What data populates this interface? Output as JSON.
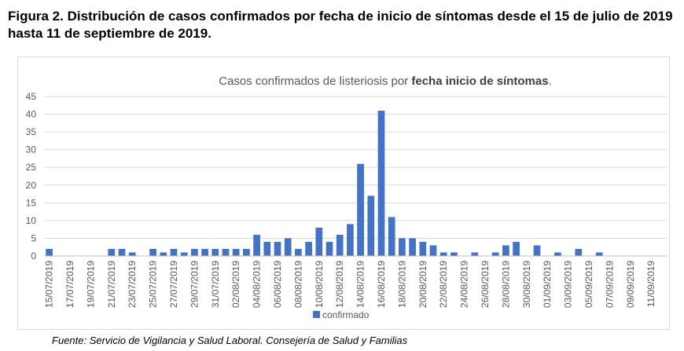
{
  "figure": {
    "title": "Figura 2. Distribución de casos confirmados por fecha de inicio de síntomas desde el 15 de julio de 2019 hasta 11 de septiembre de 2019.",
    "source": "Fuente: Servicio de Vigilancia y Salud Laboral. Consejería de Salud y Familias"
  },
  "chart_data": {
    "type": "bar",
    "title_prefix": "Casos confirmados de listeriosis por ",
    "title_bold": "fecha inicio de síntomas",
    "title_suffix": ".",
    "xlabel": "",
    "ylabel": "",
    "ylim": [
      0,
      45
    ],
    "yticks": [
      0,
      5,
      10,
      15,
      20,
      25,
      30,
      35,
      40,
      45
    ],
    "grid": true,
    "legend": "bottom-center",
    "bar_color": "#4472c4",
    "series": [
      {
        "name": "confirmado",
        "values": [
          2,
          0,
          0,
          0,
          0,
          0,
          2,
          2,
          1,
          0,
          2,
          1,
          2,
          1,
          2,
          2,
          2,
          2,
          2,
          2,
          6,
          4,
          4,
          5,
          2,
          4,
          8,
          4,
          6,
          9,
          26,
          17,
          41,
          11,
          5,
          5,
          4,
          3,
          1,
          1,
          0,
          1,
          0,
          1,
          3,
          4,
          0,
          3,
          0,
          1,
          0,
          2,
          0,
          1,
          0,
          0,
          0,
          0,
          0,
          0
        ]
      }
    ],
    "categories": [
      "15/07/2019",
      "16/07/2019",
      "17/07/2019",
      "18/07/2019",
      "19/07/2019",
      "20/07/2019",
      "21/07/2019",
      "22/07/2019",
      "23/07/2019",
      "24/07/2019",
      "25/07/2019",
      "26/07/2019",
      "27/07/2019",
      "28/07/2019",
      "29/07/2019",
      "30/07/2019",
      "31/07/2019",
      "01/08/2019",
      "02/08/2019",
      "03/08/2019",
      "04/08/2019",
      "05/08/2019",
      "06/08/2019",
      "07/08/2019",
      "08/08/2019",
      "09/08/2019",
      "10/08/2019",
      "11/08/2019",
      "12/08/2019",
      "13/08/2019",
      "14/08/2019",
      "15/08/2019",
      "16/08/2019",
      "17/08/2019",
      "18/08/2019",
      "19/08/2019",
      "20/08/2019",
      "21/08/2019",
      "22/08/2019",
      "23/08/2019",
      "24/08/2019",
      "25/08/2019",
      "26/08/2019",
      "27/08/2019",
      "28/08/2019",
      "29/08/2019",
      "30/08/2019",
      "31/08/2019",
      "01/09/2019",
      "02/09/2019",
      "03/09/2019",
      "04/09/2019",
      "05/09/2019",
      "06/09/2019",
      "07/09/2019",
      "08/09/2019",
      "09/09/2019",
      "10/09/2019",
      "11/09/2019",
      "12/09/2019"
    ],
    "tick_labels": [
      "15/07/2019",
      "17/07/2019",
      "19/07/2019",
      "21/07/2019",
      "23/07/2019",
      "25/07/2019",
      "27/07/2019",
      "29/07/2019",
      "31/07/2019",
      "02/08/2019",
      "04/08/2019",
      "06/08/2019",
      "08/08/2019",
      "10/08/2019",
      "12/08/2019",
      "14/08/2019",
      "16/08/2019",
      "18/08/2019",
      "20/08/2019",
      "22/08/2019",
      "24/08/2019",
      "26/08/2019",
      "28/08/2019",
      "30/08/2019",
      "01/09/2019",
      "03/09/2019",
      "05/09/2019",
      "07/09/2019",
      "09/09/2019",
      "11/09/2019"
    ]
  }
}
